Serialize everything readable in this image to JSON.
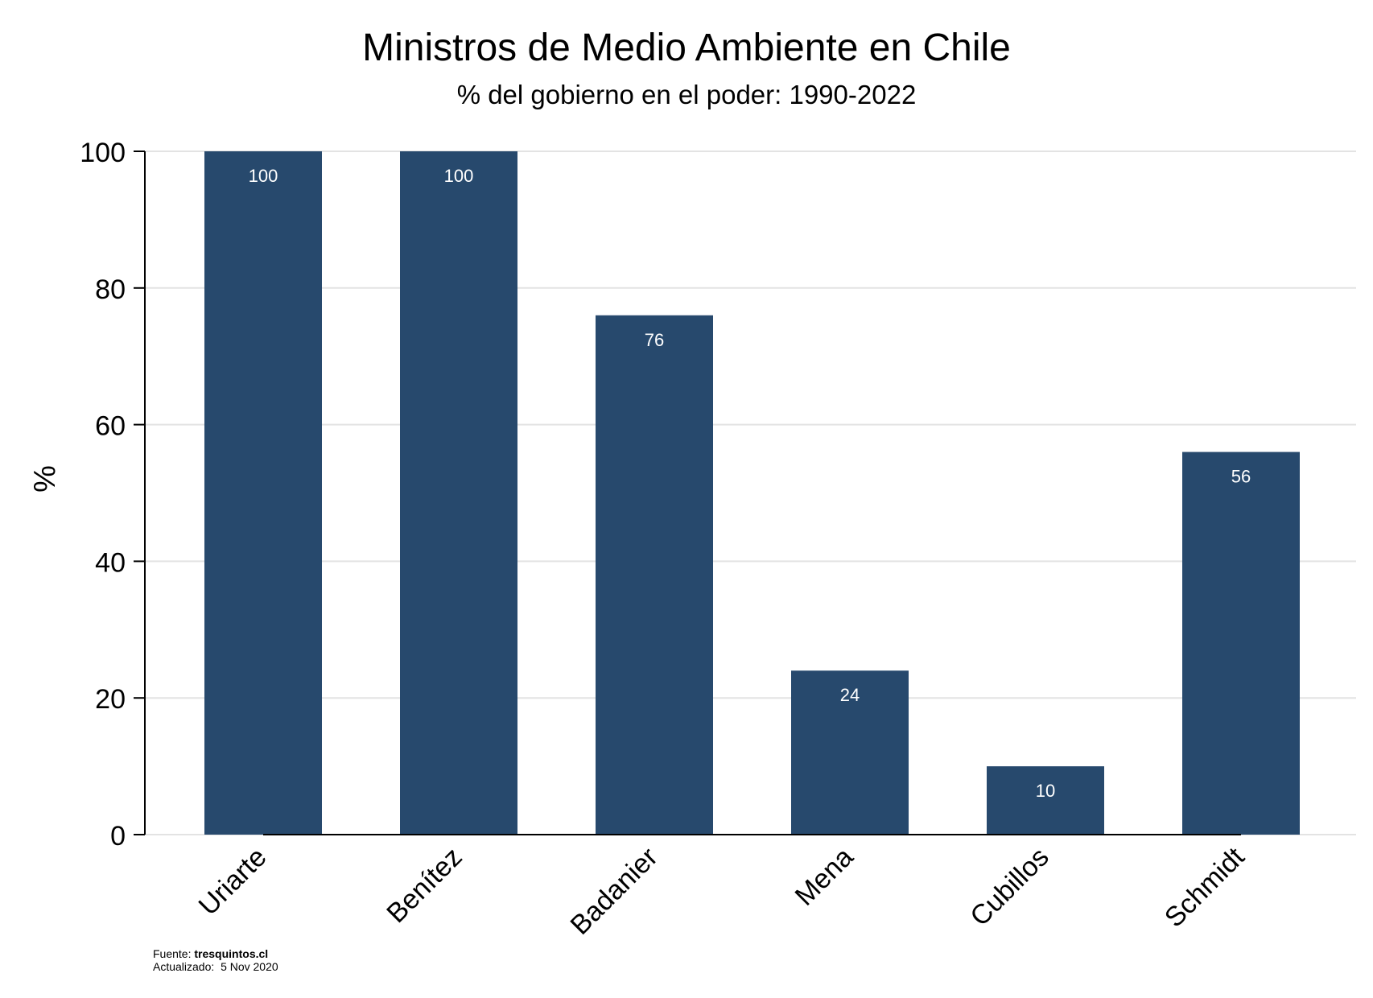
{
  "chart_data": {
    "type": "bar",
    "title": "Ministros de Medio Ambiente en Chile",
    "subtitle": "% del gobierno en el poder: 1990-2022",
    "xlabel": "",
    "ylabel": "%",
    "categories": [
      "Uriarte",
      "Benítez",
      "Badanier",
      "Mena",
      "Cubillos",
      "Schmidt"
    ],
    "values": [
      100,
      100,
      76,
      24,
      10,
      56
    ],
    "data_labels": [
      "100",
      "100",
      "76",
      "24",
      "10",
      "56"
    ],
    "ylim": [
      0,
      100
    ],
    "yticks": [
      0,
      20,
      40,
      60,
      80,
      100
    ],
    "ytick_labels": [
      "0",
      "20",
      "40",
      "60",
      "80",
      "100"
    ],
    "grid": true,
    "legend": "none",
    "colors": {
      "bar": "#27496d",
      "grid": "#e3e3e3",
      "axis": "#000000",
      "label": "#ffffff"
    }
  },
  "footer": {
    "source_label": "Fuente:",
    "source_value": "tresquintos.cl",
    "updated_label": "Actualizado:",
    "updated_value": "5 Nov 2020"
  }
}
